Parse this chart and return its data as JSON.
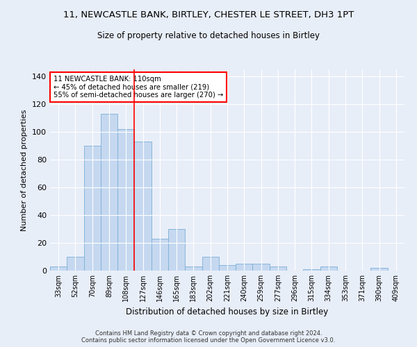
{
  "title": "11, NEWCASTLE BANK, BIRTLEY, CHESTER LE STREET, DH3 1PT",
  "subtitle": "Size of property relative to detached houses in Birtley",
  "xlabel": "Distribution of detached houses by size in Birtley",
  "ylabel": "Number of detached properties",
  "footer_line1": "Contains HM Land Registry data © Crown copyright and database right 2024.",
  "footer_line2": "Contains public sector information licensed under the Open Government Licence v3.0.",
  "categories": [
    "33sqm",
    "52sqm",
    "70sqm",
    "89sqm",
    "108sqm",
    "127sqm",
    "146sqm",
    "165sqm",
    "183sqm",
    "202sqm",
    "221sqm",
    "240sqm",
    "259sqm",
    "277sqm",
    "296sqm",
    "315sqm",
    "334sqm",
    "353sqm",
    "371sqm",
    "390sqm",
    "409sqm"
  ],
  "values": [
    3,
    10,
    90,
    113,
    102,
    93,
    23,
    30,
    3,
    10,
    4,
    5,
    5,
    3,
    0,
    1,
    3,
    0,
    0,
    2,
    0
  ],
  "bar_color": "#c5d8f0",
  "bar_edge_color": "#7aaed6",
  "vline_x_index": 4.5,
  "vline_color": "red",
  "annotation_text": "11 NEWCASTLE BANK: 110sqm\n← 45% of detached houses are smaller (219)\n55% of semi-detached houses are larger (270) →",
  "annotation_box_color": "white",
  "annotation_box_edge": "red",
  "ylim": [
    0,
    145
  ],
  "yticks": [
    0,
    20,
    40,
    60,
    80,
    100,
    120,
    140
  ],
  "bg_color": "#e8eef8",
  "grid_color": "white",
  "title_fontsize": 9.5,
  "subtitle_fontsize": 8.5,
  "tick_fontsize": 7,
  "ylabel_fontsize": 8,
  "xlabel_fontsize": 8.5
}
